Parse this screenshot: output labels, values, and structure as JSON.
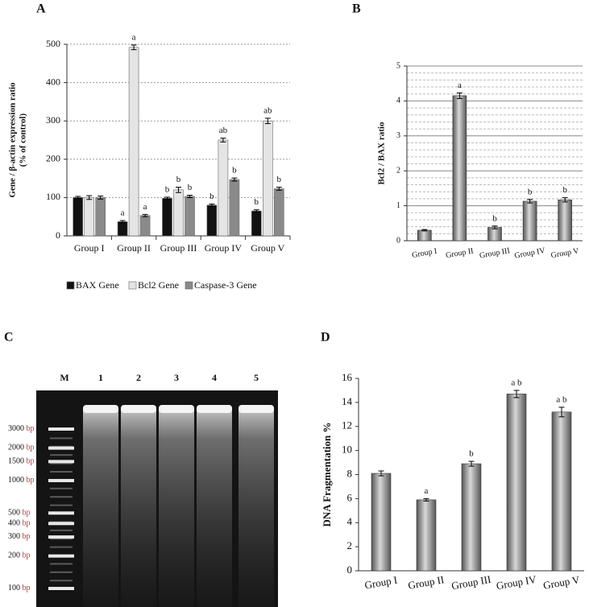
{
  "chart_data": [
    {
      "type": "bar",
      "panel_label": "A",
      "ylabel": [
        "Gene / β-actin expression ratio",
        "(% of control)"
      ],
      "categories": [
        "Group I",
        "Group II",
        "Group III",
        "Group IV",
        "Group V"
      ],
      "series": [
        {
          "name": "BAX Gene",
          "color": "#111111",
          "values": [
            100,
            37,
            98,
            80,
            65
          ],
          "errors": [
            3,
            3,
            3,
            3,
            3
          ],
          "annotations": [
            null,
            "a",
            "b",
            "b",
            "b"
          ]
        },
        {
          "name": "Bcl2 Gene",
          "color": "#e4e4e4",
          "values": [
            100,
            492,
            120,
            250,
            300
          ],
          "errors": [
            5,
            6,
            7,
            5,
            7
          ],
          "annotations": [
            null,
            "a",
            "b",
            "ab",
            "ab"
          ]
        },
        {
          "name": "Caspase-3 Gene",
          "color": "#8a8a8a",
          "values": [
            100,
            53,
            103,
            147,
            123
          ],
          "errors": [
            4,
            3,
            3,
            4,
            4
          ],
          "annotations": [
            null,
            "a",
            "b",
            "b",
            "b"
          ]
        }
      ],
      "ylim": [
        0,
        500
      ],
      "yticks": [
        0,
        100,
        200,
        300,
        400,
        500
      ],
      "grid": true,
      "legend": "bottom"
    },
    {
      "type": "bar",
      "panel_label": "B",
      "ylabel": [
        "Bcl2 / BAX ratio"
      ],
      "categories": [
        "Group I",
        "Group II",
        "Group III",
        "Group IV",
        "Group V"
      ],
      "series": [
        {
          "color": "#8c8c8c",
          "values": [
            0.3,
            4.15,
            0.38,
            1.13,
            1.17
          ],
          "errors": [
            0.02,
            0.08,
            0.04,
            0.05,
            0.06
          ],
          "annotations": [
            null,
            "a",
            "b",
            "b",
            "b"
          ]
        }
      ],
      "ylim": [
        0,
        5
      ],
      "yticks": [
        0,
        1,
        2,
        3,
        4,
        5
      ],
      "grid": true
    },
    {
      "type": "gel",
      "panel_label": "C",
      "lanes": [
        "M",
        "1",
        "2",
        "3",
        "4",
        "5"
      ],
      "ladder": [
        3000,
        2000,
        1500,
        1000,
        500,
        400,
        300,
        200,
        100
      ],
      "ladder_unit": "bp"
    },
    {
      "type": "bar",
      "panel_label": "D",
      "ylabel": [
        "DNA Fragmentation %"
      ],
      "categories": [
        "Group I",
        "Group II",
        "Group III",
        "Group IV",
        "Group V"
      ],
      "series": [
        {
          "color": "#8c8c8c",
          "values": [
            8.1,
            5.9,
            8.9,
            14.7,
            13.2
          ],
          "errors": [
            0.2,
            0.1,
            0.2,
            0.3,
            0.4
          ],
          "annotations": [
            null,
            "a",
            "b",
            "a b",
            "a b"
          ]
        }
      ],
      "ylim": [
        0,
        16
      ],
      "yticks": [
        0,
        2,
        4,
        6,
        8,
        10,
        12,
        14,
        16
      ],
      "grid": false
    }
  ]
}
